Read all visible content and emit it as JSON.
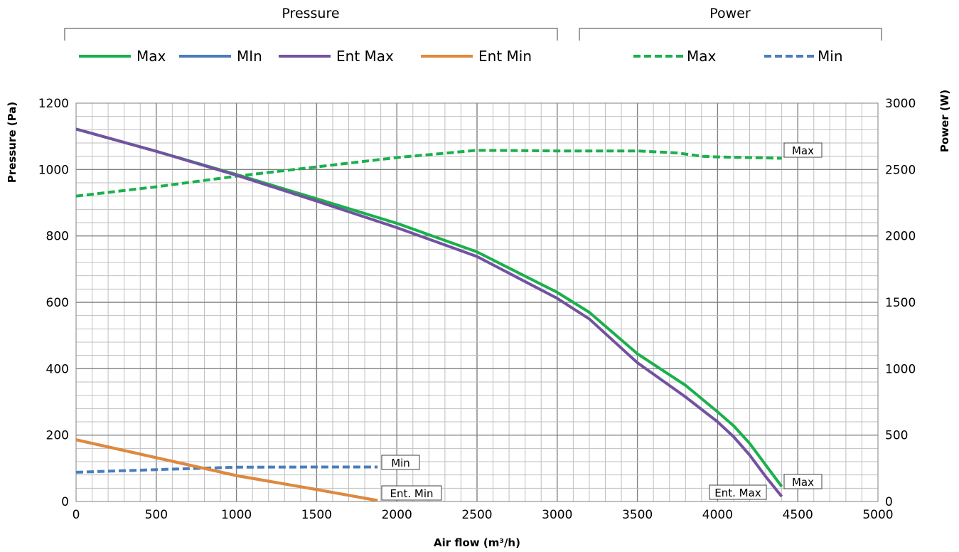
{
  "chart_data": {
    "type": "line",
    "xlabel": "Air flow (m³/h)",
    "ylabel_left": "Pressure (Pa)",
    "ylabel_right": "Power (W)",
    "xlim": [
      0,
      5000
    ],
    "ylim_left": [
      0,
      1200
    ],
    "ylim_right": [
      0,
      3000
    ],
    "x_ticks": [
      0,
      500,
      1000,
      1500,
      2000,
      2500,
      3000,
      3500,
      4000,
      4500,
      5000
    ],
    "y_ticks_left": [
      0,
      200,
      400,
      600,
      800,
      1000,
      1200
    ],
    "y_ticks_right": [
      0,
      500,
      1000,
      1500,
      2000,
      2500,
      3000
    ],
    "grid": true,
    "legend_groups": [
      {
        "title": "Pressure",
        "entries": [
          "Max",
          "MIn",
          "Ent Max",
          "Ent Min"
        ]
      },
      {
        "title": "Power",
        "entries": [
          "Max",
          "Min"
        ]
      }
    ],
    "series": [
      {
        "name": "Max",
        "axis": "left",
        "color": "#1ab04c",
        "dash": "solid",
        "x": [
          0,
          500,
          1000,
          1500,
          2000,
          2500,
          3000,
          3200,
          3500,
          3800,
          4000,
          4100,
          4200,
          4300,
          4400
        ],
        "y": [
          1122,
          1055,
          985,
          912,
          838,
          752,
          630,
          570,
          445,
          350,
          270,
          228,
          175,
          110,
          45
        ]
      },
      {
        "name": "MIn",
        "axis": "left",
        "color": "#4a7ebb",
        "dash": "solid",
        "x": [
          0,
          500,
          1000,
          1500,
          1880
        ],
        "y": [
          186,
          132,
          78,
          36,
          3
        ]
      },
      {
        "name": "Ent Max",
        "axis": "left",
        "color": "#7352a0",
        "dash": "solid",
        "x": [
          0,
          500,
          1000,
          1500,
          2000,
          2500,
          3000,
          3200,
          3500,
          3800,
          4000,
          4100,
          4200,
          4300,
          4400
        ],
        "y": [
          1122,
          1055,
          983,
          905,
          825,
          738,
          612,
          550,
          418,
          315,
          240,
          195,
          140,
          75,
          15
        ]
      },
      {
        "name": "Ent Min",
        "axis": "left",
        "color": "#e2883a",
        "dash": "solid",
        "x": [
          0,
          500,
          1000,
          1500,
          1880
        ],
        "y": [
          186,
          132,
          78,
          36,
          3
        ]
      },
      {
        "name": "Max",
        "axis": "right",
        "color": "#1ab04c",
        "dash": "dashed",
        "x": [
          0,
          500,
          1000,
          1500,
          2000,
          2500,
          3000,
          3500,
          3750,
          3900,
          4000,
          4400
        ],
        "y": [
          2300,
          2370,
          2450,
          2520,
          2590,
          2645,
          2640,
          2640,
          2625,
          2600,
          2595,
          2585
        ]
      },
      {
        "name": "Min",
        "axis": "right",
        "color": "#4a7ebb",
        "dash": "dashed",
        "x": [
          0,
          500,
          1000,
          1500,
          1880
        ],
        "y": [
          220,
          240,
          258,
          260,
          260
        ]
      }
    ],
    "annotations": [
      {
        "text": "Max",
        "series": "Power Max"
      },
      {
        "text": "Min",
        "series": "Power Min"
      },
      {
        "text": "Ent. Min",
        "series": "Ent Min"
      },
      {
        "text": "Max",
        "series": "Pressure Max"
      },
      {
        "text": "Ent. Max",
        "series": "Ent Max"
      }
    ]
  }
}
